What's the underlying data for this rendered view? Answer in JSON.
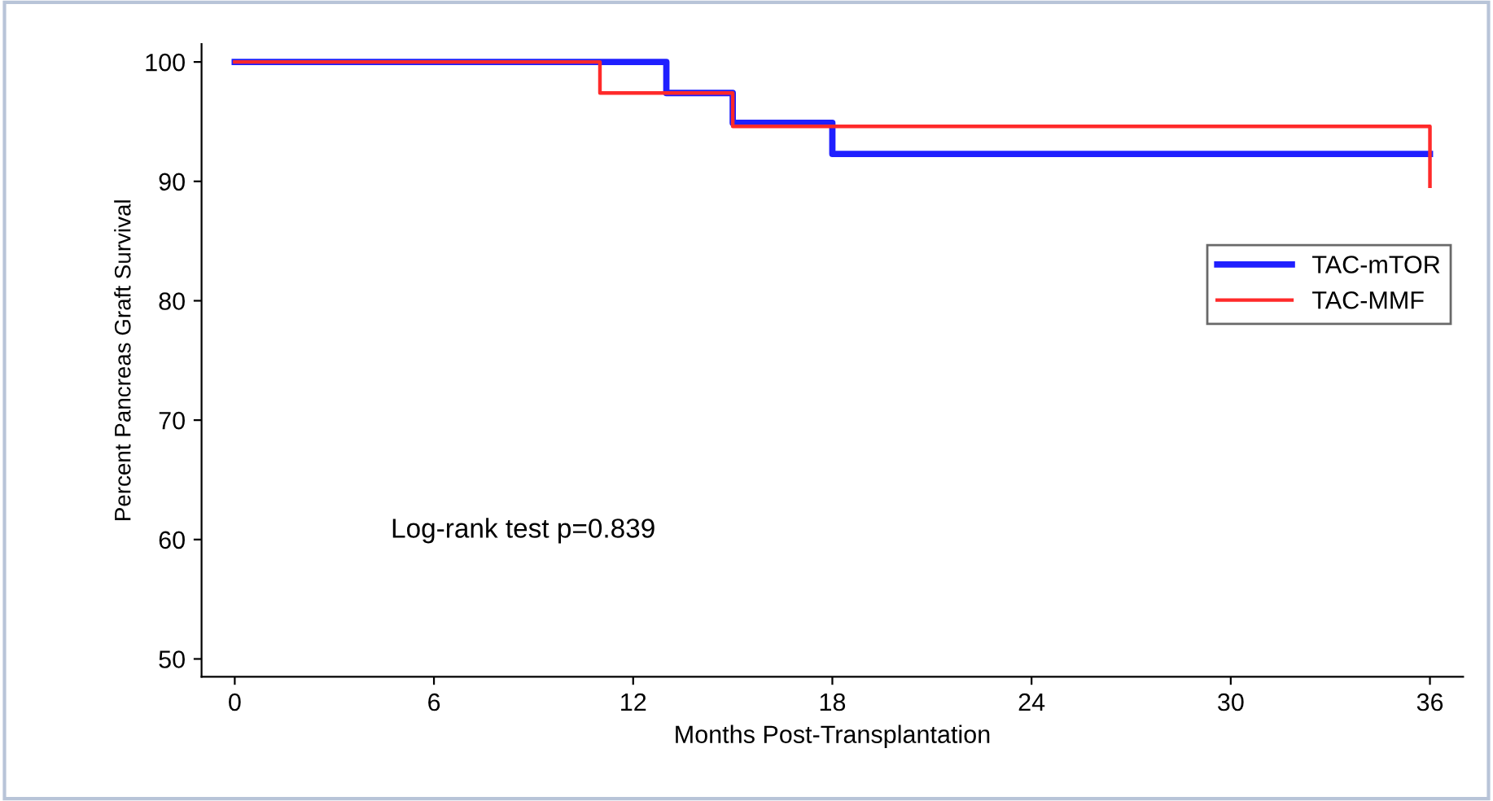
{
  "chart_data": {
    "type": "step",
    "xlabel": "Months Post-Transplantation",
    "ylabel": "Percent Pancreas Graft Survival",
    "series": [
      {
        "name": "TAC-mTOR",
        "color": "#1f1fff",
        "x": [
          0,
          13,
          15,
          18,
          36
        ],
        "values": [
          100,
          97.4,
          94.9,
          92.3,
          92.3
        ]
      },
      {
        "name": "TAC-MMF",
        "color": "#ff2a2a",
        "x": [
          0,
          11,
          15,
          36,
          36
        ],
        "values": [
          100,
          97.4,
          94.6,
          94.6,
          89.6
        ]
      }
    ],
    "xlim": [
      -1,
      37
    ],
    "xticks": [
      0,
      6,
      12,
      18,
      24,
      30,
      36
    ],
    "ylim": [
      48.5,
      101.5
    ],
    "yticks": [
      50,
      60,
      70,
      80,
      90,
      100
    ],
    "grid": false,
    "legend": "right",
    "annotations": [
      "Log-rank test p=0.839"
    ]
  }
}
